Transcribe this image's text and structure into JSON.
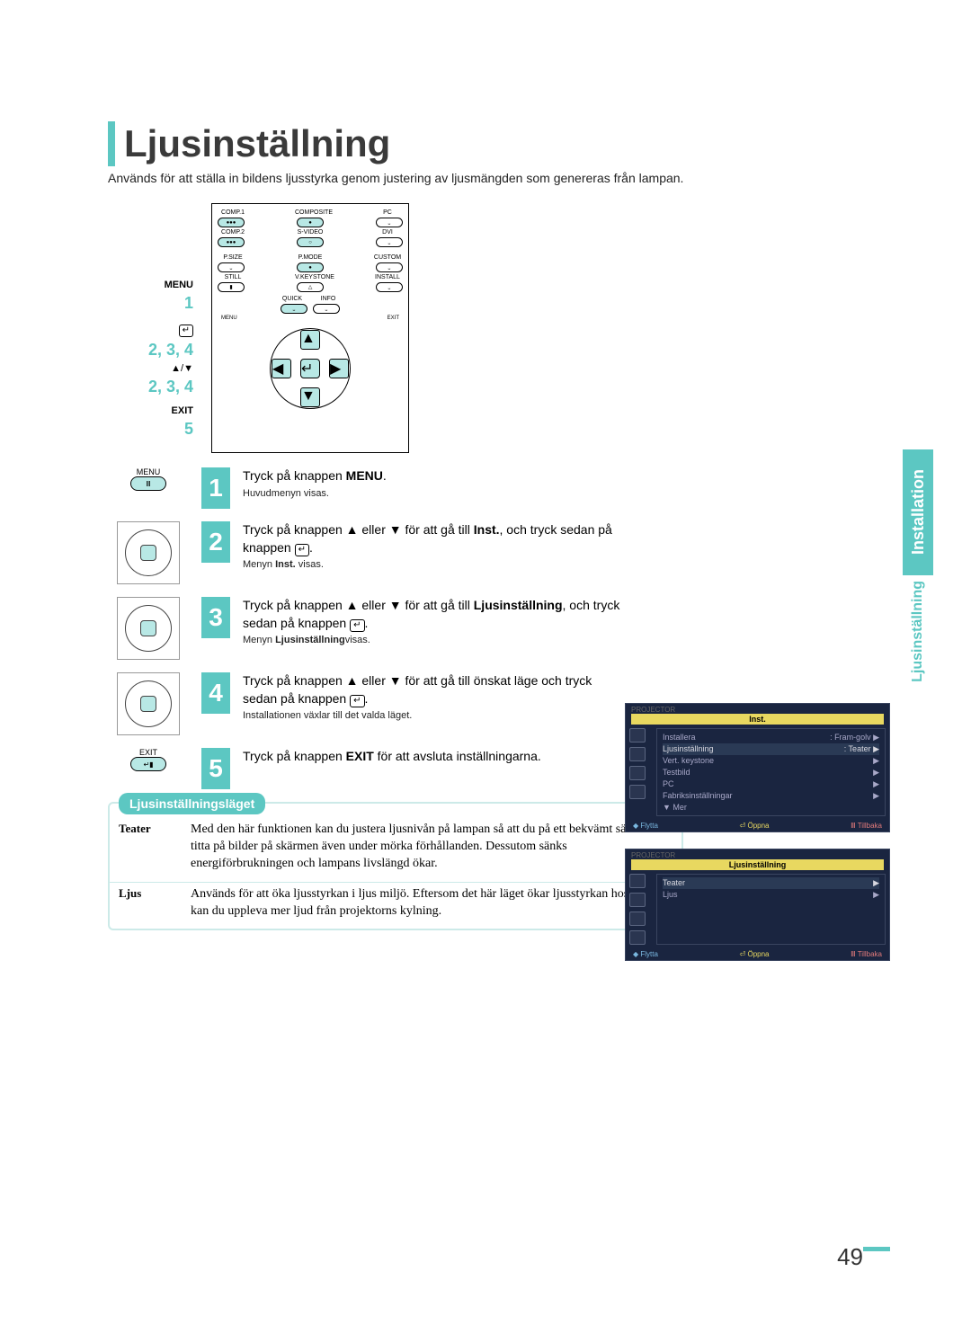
{
  "title": "Ljusinställning",
  "subtitle": "Används för att ställa in bildens ljusstyrka genom justering av ljusmängden som genereras från lampan.",
  "sidetab": {
    "main": "Installation",
    "sub": "Ljusinställning"
  },
  "accent_color": "#5cc7c2",
  "remote_labels": {
    "menu": "MENU",
    "menu_num": "1",
    "enter": "2, 3, 4",
    "updown": "▲/▼",
    "updown_num": "2, 3, 4",
    "exit": "EXIT",
    "exit_num": "5"
  },
  "remote_buttons": {
    "r1": [
      "COMP.1",
      "COMPOSITE",
      "PC"
    ],
    "r2": [
      "COMP.2",
      "S-VIDEO",
      "DVI"
    ],
    "r3": [
      "P.SIZE",
      "P.MODE",
      "CUSTOM"
    ],
    "r4": [
      "STILL",
      "V.KEYSTONE",
      "INSTALL"
    ],
    "mid": [
      "QUICK",
      "INFO"
    ],
    "diag": [
      "MENU",
      "EXIT"
    ]
  },
  "steps": [
    {
      "n": "1",
      "icon": "menu",
      "icon_label": "MENU",
      "text": "Tryck på knappen MENU.",
      "bold": "MENU",
      "sub": "Huvudmenyn visas."
    },
    {
      "n": "2",
      "icon": "dpad",
      "text": "Tryck på knappen ▲ eller ▼ för att gå till  Inst., och tryck sedan på knappen ",
      "bold": "Inst.",
      "sub": "Menyn Inst. visas.",
      "enter": true
    },
    {
      "n": "3",
      "icon": "dpad",
      "text_pre": "Tryck på knappen ▲ eller ▼ för att gå till ",
      "bold_start": "Ljusinställning",
      "text_post": ", och tryck sedan på knappen ",
      "sub": "Menyn Ljusinställningvisas.",
      "sub_bold": "Ljusinställning",
      "enter": true
    },
    {
      "n": "4",
      "icon": "dpad",
      "text": "Tryck på knappen ▲ eller ▼ för att gå till önskat läge och tryck sedan på knappen ",
      "sub": "Installationen växlar till det valda läget.",
      "enter": true
    },
    {
      "n": "5",
      "icon": "exit",
      "icon_label": "EXIT",
      "text_pre": "Tryck på knappen ",
      "bold_start": "EXIT",
      "text_post": " för att avsluta inställningarna."
    }
  ],
  "osd_menus": {
    "screen1": {
      "proj": "PROJECTOR",
      "title": "Inst.",
      "items": [
        {
          "l": "Installera",
          "r": ": Fram-golv",
          "arrow": "▶"
        },
        {
          "l": "Ljusinställning",
          "r": ": Teater",
          "arrow": "▶",
          "hl": true
        },
        {
          "l": "Vert. keystone",
          "r": "",
          "arrow": "▶"
        },
        {
          "l": "Testbild",
          "r": "",
          "arrow": "▶"
        },
        {
          "l": "PC",
          "r": "",
          "arrow": "▶"
        },
        {
          "l": "Fabriksinställningar",
          "r": "",
          "arrow": "▶"
        },
        {
          "l": "▼ Mer",
          "r": "",
          "arrow": ""
        }
      ],
      "footer": [
        "◆ Flytta",
        "⏎ Öppna",
        "Ⅲ Tillbaka"
      ]
    },
    "screen2": {
      "proj": "PROJECTOR",
      "title": "Ljusinställning",
      "items": [
        {
          "l": "Teater",
          "r": "",
          "arrow": "▶",
          "hl": true
        },
        {
          "l": "Ljus",
          "r": "",
          "arrow": "▶"
        }
      ],
      "footer": [
        "◆ Flytta",
        "⏎ Öppna",
        "Ⅲ Tillbaka"
      ]
    }
  },
  "info_box": {
    "tab": "Ljusinställningsläget",
    "rows": [
      {
        "label": "Teater",
        "desc": "Med den här funktionen kan du justera ljusnivån på lampan så att du på ett bekvämt sätt kan titta på bilder på skärmen även under mörka förhållanden. Dessutom sänks energiförbrukningen och lampans livslängd ökar."
      },
      {
        "label": "Ljus",
        "desc": "Används för att öka ljusstyrkan i ljus miljö. Eftersom det här läget ökar ljusstyrkan hos lampan kan du uppleva mer ljud från projektorns kylning."
      }
    ]
  },
  "page_number": "49"
}
